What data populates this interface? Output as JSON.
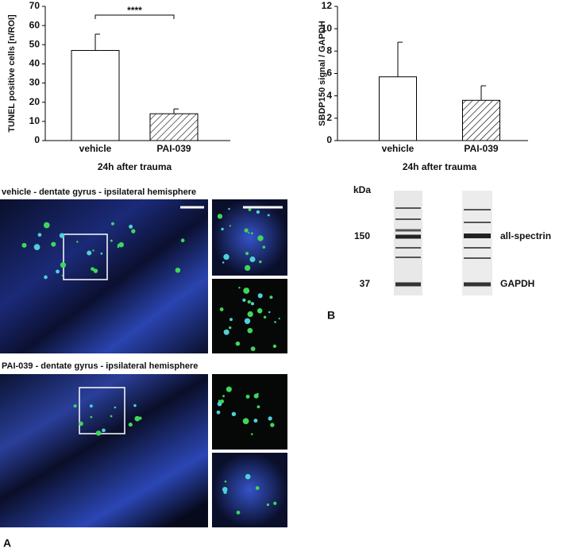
{
  "chart_data": [
    {
      "type": "bar",
      "ylabel": "TUNEL positive cells [n/ROI]",
      "xlabel": "24h after trauma",
      "categories": [
        "vehicle",
        "PAI-039"
      ],
      "values": [
        47,
        14
      ],
      "errors": [
        8.5,
        2.5
      ],
      "fills": [
        "solid",
        "hatched"
      ],
      "color": "#000000",
      "ylim": [
        0,
        70
      ],
      "yticks": [
        0,
        10,
        20,
        30,
        40,
        50,
        60,
        70
      ],
      "annotation": "****"
    },
    {
      "type": "bar",
      "ylabel": "SBDP150 signal / GAPDH",
      "xlabel": "24h after trauma",
      "categories": [
        "vehicle",
        "PAI-039"
      ],
      "values": [
        5.7,
        3.6
      ],
      "errors": [
        3.1,
        1.3
      ],
      "fills": [
        "solid",
        "hatched"
      ],
      "color": "#000000",
      "ylim": [
        0,
        12
      ],
      "yticks": [
        0,
        2,
        4,
        6,
        8,
        10,
        12
      ]
    }
  ],
  "panels": {
    "vehicle_title": "vehicle - dentate gyrus - ipsilateral hemisphere",
    "pai_title": "PAI-039 - dentate gyrus - ipsilateral hemisphere",
    "label_a": "A",
    "label_b": "B"
  },
  "blot": {
    "unit": "kDa",
    "marker_high": 150,
    "marker_low": 37,
    "band_high": "all-spectrin",
    "band_low": "GAPDH"
  }
}
